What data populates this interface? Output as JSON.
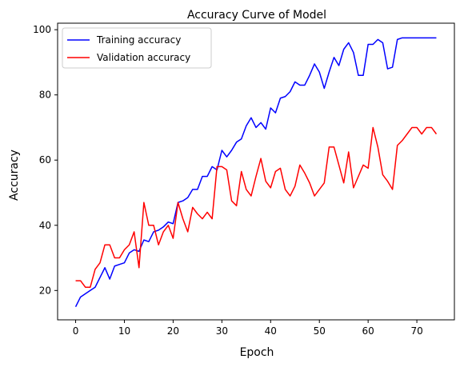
{
  "chart_data": {
    "type": "line",
    "title": "Accuracy Curve of Model",
    "xlabel": "Epoch",
    "ylabel": "Accuracy",
    "xlim": [
      -3.7,
      77.7
    ],
    "ylim": [
      11,
      102
    ],
    "xticks": [
      0,
      10,
      20,
      30,
      40,
      50,
      60,
      70
    ],
    "yticks": [
      20,
      40,
      60,
      80,
      100
    ],
    "grid": false,
    "legend_position": "upper-left",
    "x": [
      0,
      1,
      2,
      3,
      4,
      5,
      6,
      7,
      8,
      9,
      10,
      11,
      12,
      13,
      14,
      15,
      16,
      17,
      18,
      19,
      20,
      21,
      22,
      23,
      24,
      25,
      26,
      27,
      28,
      29,
      30,
      31,
      32,
      33,
      34,
      35,
      36,
      37,
      38,
      39,
      40,
      41,
      42,
      43,
      44,
      45,
      46,
      47,
      48,
      49,
      50,
      51,
      52,
      53,
      54,
      55,
      56,
      57,
      58,
      59,
      60,
      61,
      62,
      63,
      64,
      65,
      66,
      67,
      68,
      69,
      70,
      71,
      72,
      73,
      74
    ],
    "series": [
      {
        "name": "Training accuracy",
        "color": "#0000ff",
        "values": [
          15,
          18,
          19,
          20,
          21,
          24,
          27,
          23.5,
          27.5,
          28,
          28.5,
          31.5,
          32.5,
          32,
          35.5,
          35,
          38,
          38.5,
          39.5,
          41,
          40.5,
          47,
          47.5,
          48.5,
          51,
          51,
          55,
          55,
          58,
          57,
          63,
          61,
          63,
          65.5,
          66.5,
          70.5,
          73,
          70,
          71.5,
          69.5,
          76,
          74.5,
          79,
          79.5,
          81,
          84,
          83,
          83,
          86,
          89.5,
          87,
          82,
          87,
          91.5,
          89,
          94,
          96,
          93,
          86,
          86,
          95.5,
          95.5,
          97,
          96,
          88,
          88.5,
          97,
          97.5,
          97.5,
          97.5,
          97.5,
          97.5,
          97.5,
          97.5,
          97.5
        ]
      },
      {
        "name": "Validation accuracy",
        "color": "#ff0000",
        "values": [
          23,
          23,
          21,
          21,
          26.5,
          28.5,
          34,
          34,
          30,
          30,
          32.5,
          34,
          38,
          27,
          47,
          40,
          40,
          34,
          38,
          40,
          36,
          47,
          42,
          38,
          45.5,
          43.5,
          42,
          44,
          42,
          58,
          58,
          57,
          47.5,
          46,
          56.5,
          51,
          49,
          55,
          60.5,
          53.5,
          51.5,
          56.5,
          57.5,
          51,
          49,
          52,
          58.5,
          56,
          53,
          49,
          51,
          53,
          64,
          64,
          58.5,
          53,
          62.5,
          51.5,
          55,
          58.5,
          57.5,
          70,
          64,
          55.5,
          53.5,
          51,
          64.5,
          66,
          68,
          70,
          70,
          68,
          70,
          70,
          68
        ]
      }
    ]
  }
}
